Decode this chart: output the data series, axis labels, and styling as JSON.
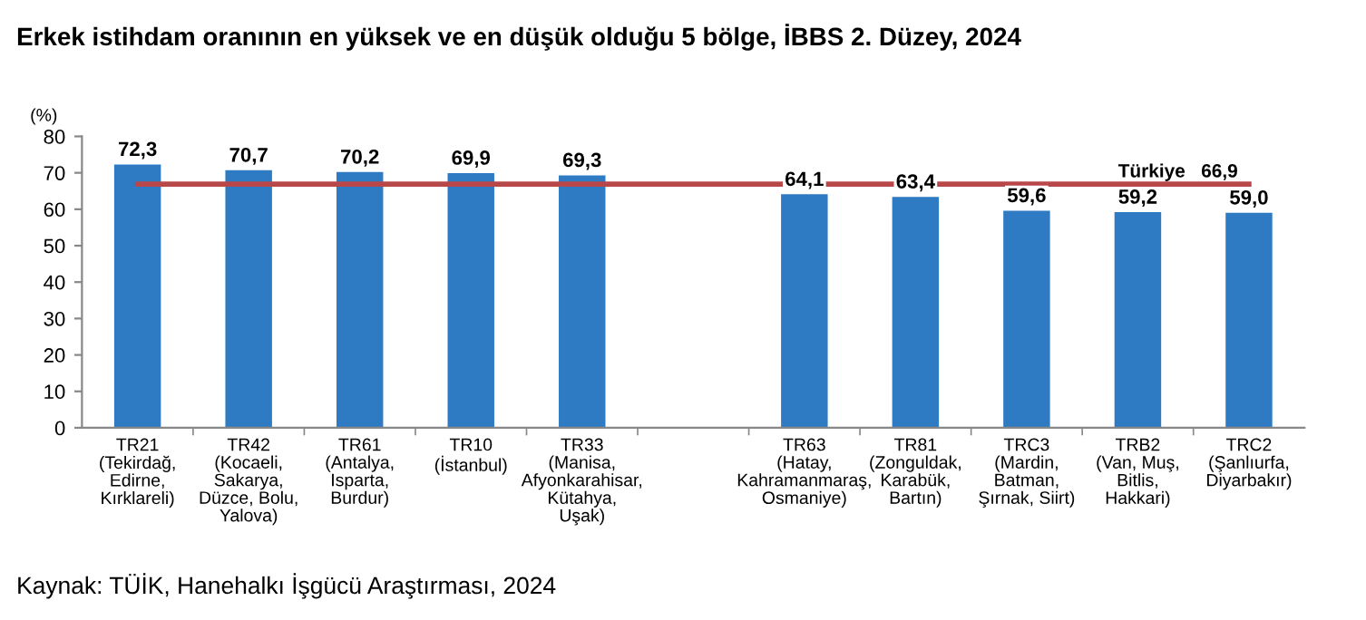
{
  "chart_data": {
    "type": "bar",
    "title": "Erkek istihdam oranının en yüksek ve en düşük olduğu 5 bölge, İBBS 2. Düzey, 2024",
    "ylabel": "(%)",
    "categories": [
      "TR21\n(Tekirdağ,\nEdirne,\nKırklareli)",
      "TR42\n(Kocaeli,\nSakarya,\nDüzce, Bolu,\nYalova)",
      "TR61\n(Antalya,\nIsparta,\nBurdur)",
      "TR10\n(İstanbul)",
      "TR33\n(Manisa,\nAfyonkarahisar,\nKütahya,\nUşak)",
      null,
      "TR63\n(Hatay,\nKahramanmaraş,\nOsmaniye)",
      "TR81\n(Zonguldak,\nKarabük,\nBartın)",
      "TRC3\n(Mardin,\nBatman,\nŞırnak, Siirt)",
      "TRB2\n(Van, Muş,\nBitlis,\nHakkari)",
      "TRC2\n(Şanlıurfa,\nDiyarbakır)"
    ],
    "values": [
      72.3,
      70.7,
      70.2,
      69.9,
      69.3,
      null,
      64.1,
      63.4,
      59.6,
      59.2,
      59.0
    ],
    "value_labels": [
      "72,3",
      "70,7",
      "70,2",
      "69,9",
      "69,3",
      null,
      "64,1",
      "63,4",
      "59,6",
      "59,2",
      "59,0"
    ],
    "color": "#2e7bc4",
    "ylim": [
      0,
      80
    ],
    "yticks": [
      0,
      10,
      20,
      30,
      40,
      50,
      60,
      70,
      80
    ],
    "ref_lines": [
      {
        "axis": "y",
        "value": 66.9,
        "label": "Türkiye   66,9",
        "color": "#b8474a"
      }
    ],
    "annotations": [
      "Kaynak: TÜİK, Hanehalkı İşgücü Araştırması, 2024"
    ],
    "grid": false,
    "legend": false
  }
}
